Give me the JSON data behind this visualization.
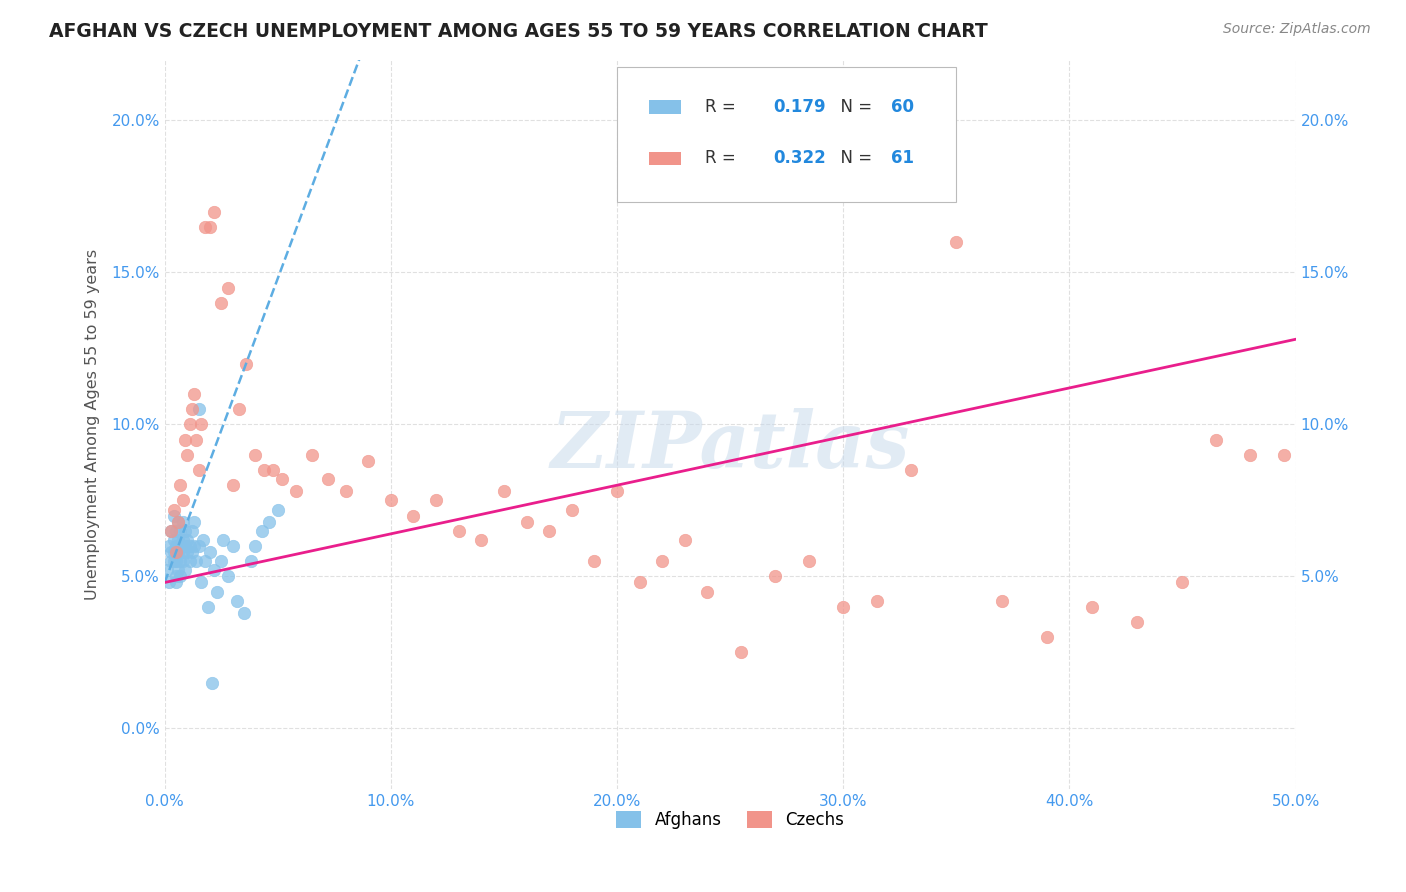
{
  "title": "AFGHAN VS CZECH UNEMPLOYMENT AMONG AGES 55 TO 59 YEARS CORRELATION CHART",
  "source": "Source: ZipAtlas.com",
  "ylabel": "Unemployment Among Ages 55 to 59 years",
  "xlim": [
    0.0,
    0.5
  ],
  "ylim": [
    -0.02,
    0.22
  ],
  "xticks": [
    0.0,
    0.1,
    0.2,
    0.3,
    0.4,
    0.5
  ],
  "yticks": [
    0.0,
    0.05,
    0.1,
    0.15,
    0.2
  ],
  "ytick_labels_left": [
    "0.0%",
    "5.0%",
    "10.0%",
    "15.0%",
    "20.0%"
  ],
  "ytick_labels_right": [
    "",
    "5.0%",
    "10.0%",
    "15.0%",
    "20.0%"
  ],
  "xtick_labels": [
    "0.0%",
    "10.0%",
    "20.0%",
    "30.0%",
    "40.0%",
    "50.0%"
  ],
  "afghan_color": "#85C1E9",
  "czech_color": "#F1948A",
  "afghan_trend_color": "#5DADE2",
  "czech_trend_color": "#E91E8C",
  "background_color": "#FFFFFF",
  "grid_color": "#DDDDDD",
  "watermark": "ZIPatlas",
  "afghan_R": 0.179,
  "czech_R": 0.322,
  "afghan_N": 60,
  "czech_N": 61,
  "afghan_x": [
    0.001,
    0.002,
    0.002,
    0.003,
    0.003,
    0.003,
    0.004,
    0.004,
    0.004,
    0.004,
    0.005,
    0.005,
    0.005,
    0.005,
    0.005,
    0.006,
    0.006,
    0.006,
    0.006,
    0.007,
    0.007,
    0.007,
    0.007,
    0.008,
    0.008,
    0.008,
    0.008,
    0.009,
    0.009,
    0.009,
    0.01,
    0.01,
    0.011,
    0.011,
    0.012,
    0.012,
    0.013,
    0.013,
    0.014,
    0.015,
    0.015,
    0.016,
    0.017,
    0.018,
    0.019,
    0.02,
    0.021,
    0.022,
    0.023,
    0.025,
    0.026,
    0.028,
    0.03,
    0.032,
    0.035,
    0.038,
    0.04,
    0.043,
    0.046,
    0.05
  ],
  "afghan_y": [
    0.052,
    0.06,
    0.048,
    0.055,
    0.058,
    0.065,
    0.055,
    0.062,
    0.058,
    0.07,
    0.05,
    0.055,
    0.06,
    0.065,
    0.048,
    0.052,
    0.058,
    0.062,
    0.068,
    0.055,
    0.06,
    0.065,
    0.05,
    0.058,
    0.062,
    0.068,
    0.055,
    0.06,
    0.065,
    0.052,
    0.058,
    0.062,
    0.055,
    0.06,
    0.058,
    0.065,
    0.06,
    0.068,
    0.055,
    0.06,
    0.105,
    0.048,
    0.062,
    0.055,
    0.04,
    0.058,
    0.015,
    0.052,
    0.045,
    0.055,
    0.062,
    0.05,
    0.06,
    0.042,
    0.038,
    0.055,
    0.06,
    0.065,
    0.068,
    0.072
  ],
  "czech_x": [
    0.003,
    0.004,
    0.005,
    0.006,
    0.007,
    0.008,
    0.009,
    0.01,
    0.011,
    0.012,
    0.013,
    0.014,
    0.015,
    0.016,
    0.018,
    0.02,
    0.022,
    0.025,
    0.028,
    0.03,
    0.033,
    0.036,
    0.04,
    0.044,
    0.048,
    0.052,
    0.058,
    0.065,
    0.072,
    0.08,
    0.09,
    0.1,
    0.11,
    0.12,
    0.13,
    0.14,
    0.15,
    0.16,
    0.17,
    0.18,
    0.19,
    0.2,
    0.21,
    0.22,
    0.23,
    0.24,
    0.255,
    0.27,
    0.285,
    0.3,
    0.315,
    0.33,
    0.35,
    0.37,
    0.39,
    0.41,
    0.43,
    0.45,
    0.465,
    0.48,
    0.495
  ],
  "czech_y": [
    0.065,
    0.072,
    0.058,
    0.068,
    0.08,
    0.075,
    0.095,
    0.09,
    0.1,
    0.105,
    0.11,
    0.095,
    0.085,
    0.1,
    0.165,
    0.165,
    0.17,
    0.14,
    0.145,
    0.08,
    0.105,
    0.12,
    0.09,
    0.085,
    0.085,
    0.082,
    0.078,
    0.09,
    0.082,
    0.078,
    0.088,
    0.075,
    0.07,
    0.075,
    0.065,
    0.062,
    0.078,
    0.068,
    0.065,
    0.072,
    0.055,
    0.078,
    0.048,
    0.055,
    0.062,
    0.045,
    0.025,
    0.05,
    0.055,
    0.04,
    0.042,
    0.085,
    0.16,
    0.042,
    0.03,
    0.04,
    0.035,
    0.048,
    0.095,
    0.09,
    0.09
  ]
}
